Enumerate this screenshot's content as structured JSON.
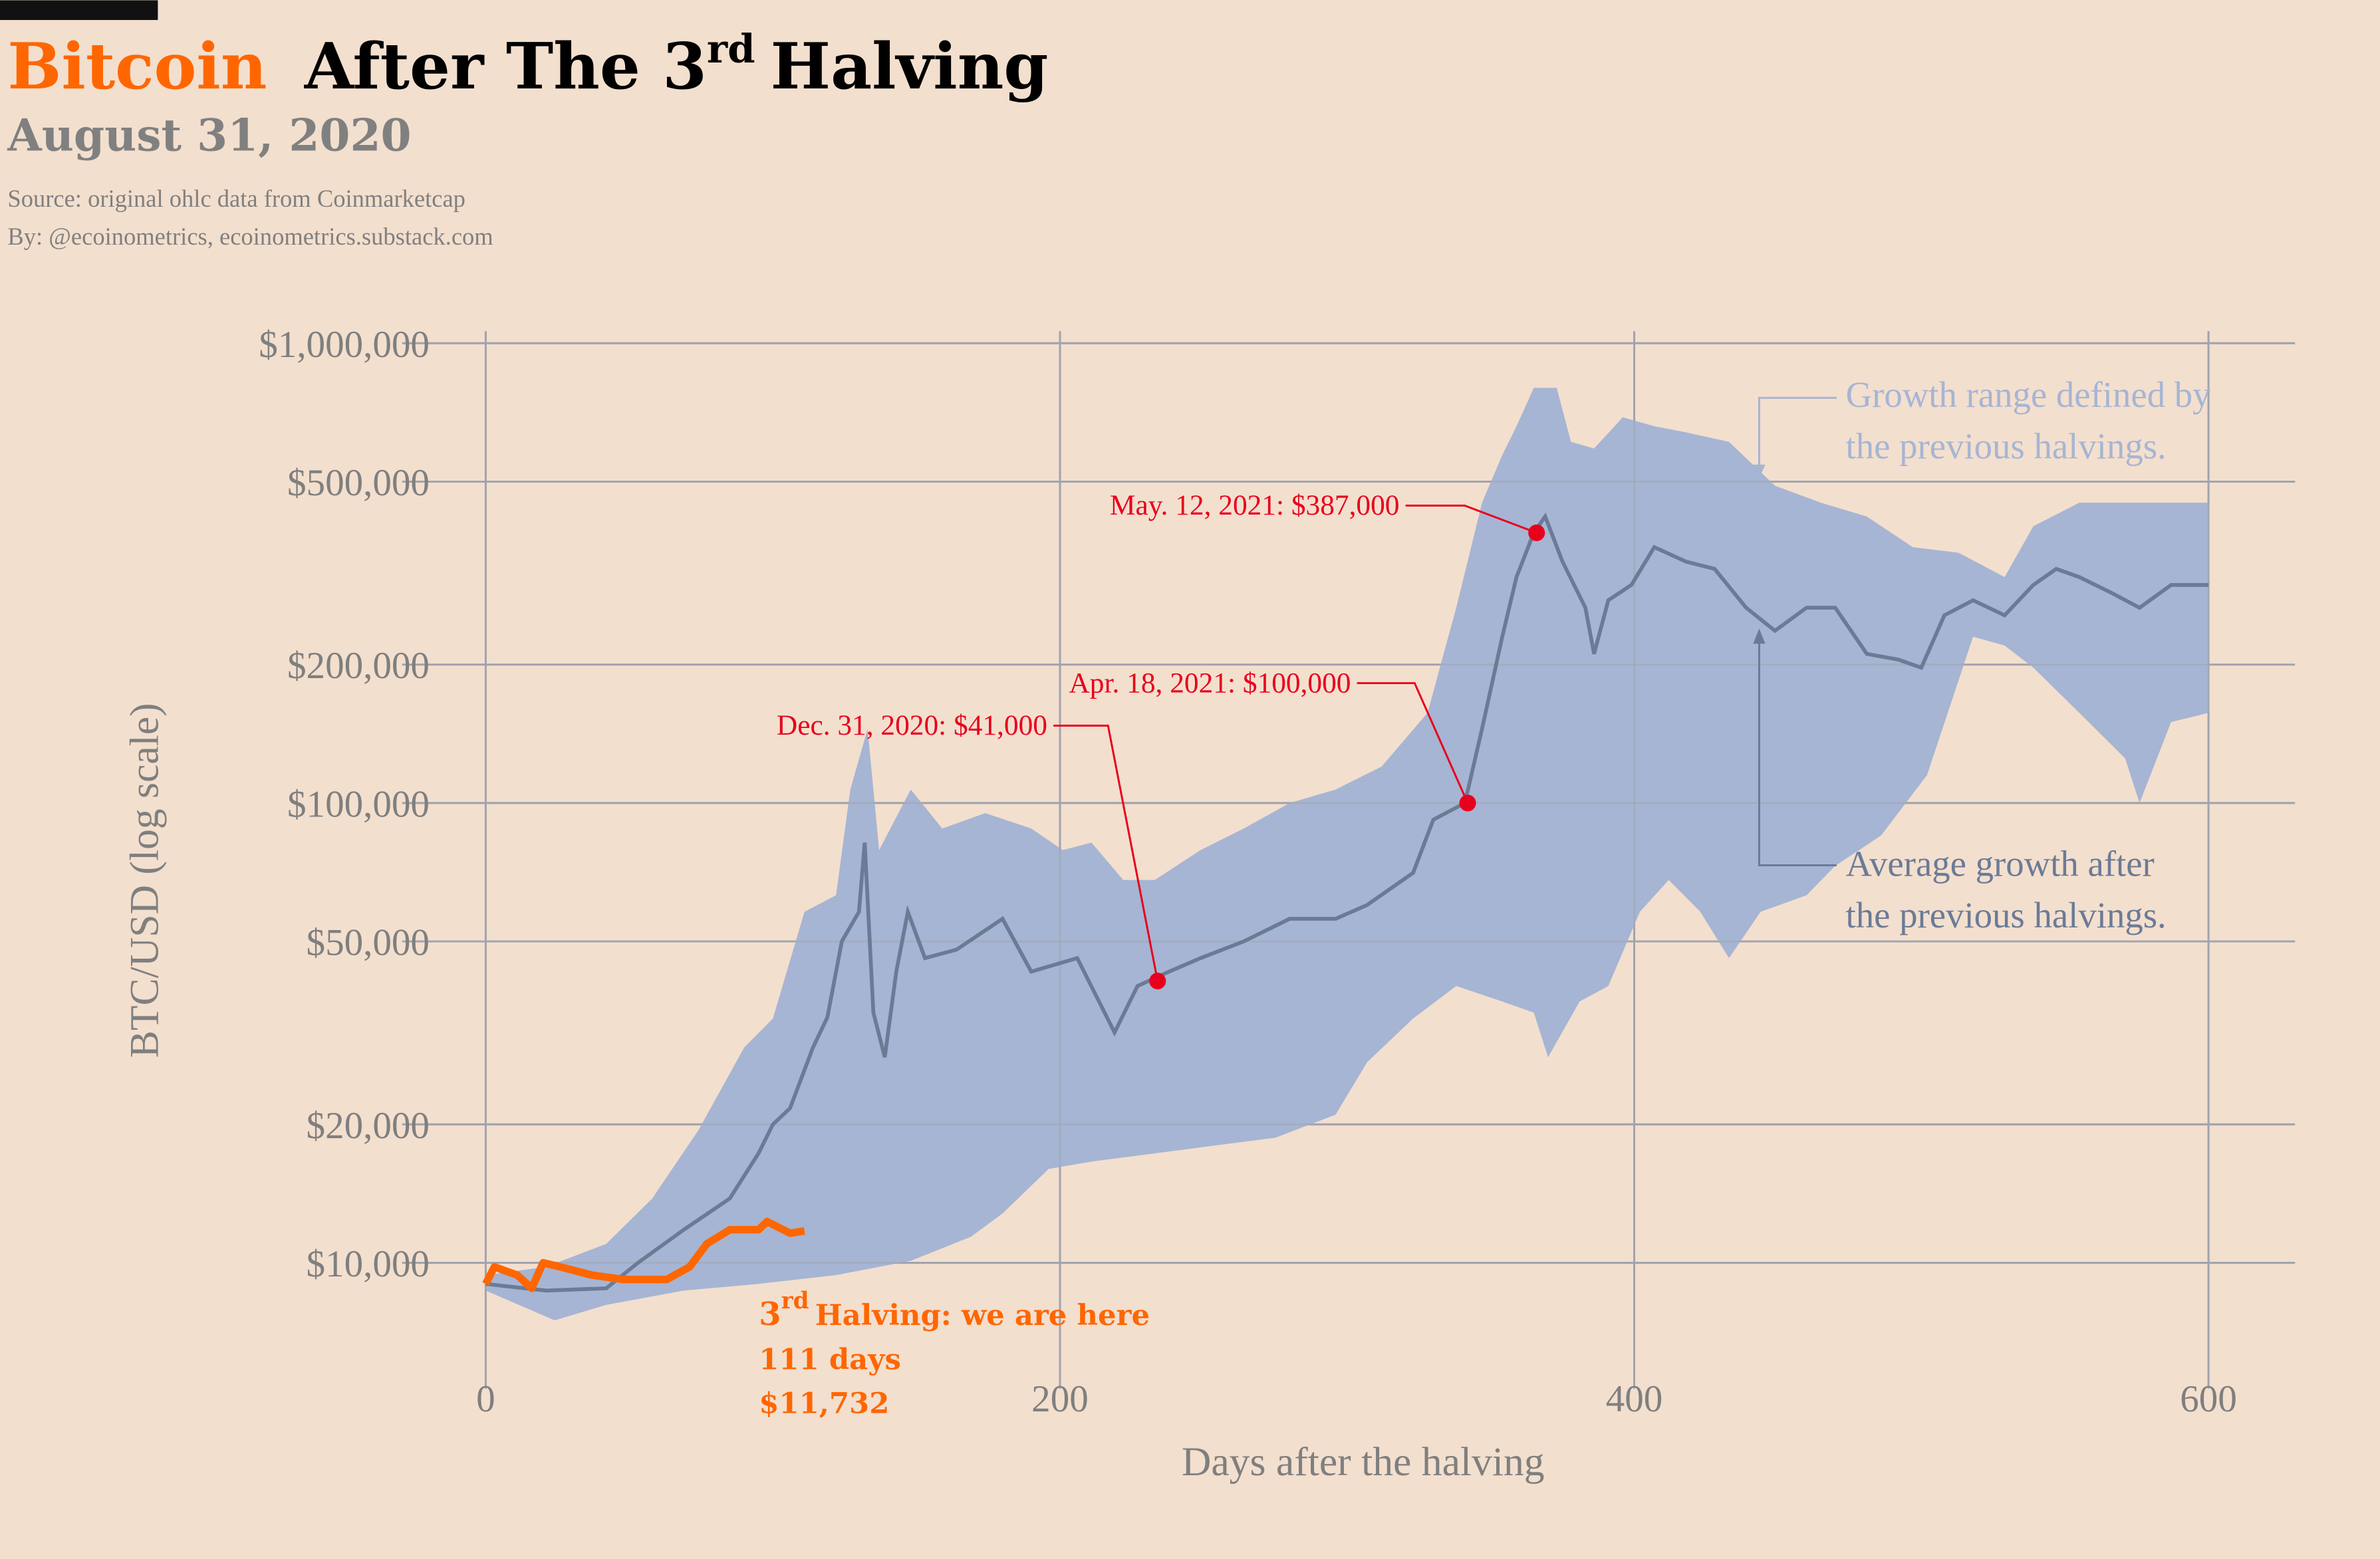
{
  "header": {
    "title_brand": "Bitcoin",
    "title_rest": "After The 3",
    "title_sup": "rd",
    "title_end": "Halving",
    "subtitle": "August 31, 2020",
    "source": "Source: original ohlc data from Coinmarketcap",
    "byline": "By: @ecoinometrics, ecoinometrics.substack.com"
  },
  "colors": {
    "background": "#f3dfce",
    "brand": "#ff6600",
    "band": "#a6b5d3",
    "average": "#6b7b96",
    "highlight": "#e8001c",
    "current": "#ff6600"
  },
  "chart_data": {
    "type": "area",
    "xlabel": "Days after the halving",
    "ylabel": "BTC/USD (log scale)",
    "y_scale": "log",
    "xlim": [
      -30,
      630
    ],
    "ylim": [
      7000,
      1000000
    ],
    "grid": true,
    "x_ticks": [
      {
        "value": 0,
        "label": "0"
      },
      {
        "value": 200,
        "label": "200"
      },
      {
        "value": 400,
        "label": "400"
      },
      {
        "value": 600,
        "label": "600"
      }
    ],
    "y_ticks": [
      {
        "value": 10000,
        "label": "$10,000"
      },
      {
        "value": 20000,
        "label": "$20,000"
      },
      {
        "value": 50000,
        "label": "$50,000"
      },
      {
        "value": 100000,
        "label": "$100,000"
      },
      {
        "value": 200000,
        "label": "$200,000"
      },
      {
        "value": 500000,
        "label": "$500,000"
      },
      {
        "value": 1000000,
        "label": "$1,000,000"
      }
    ],
    "range_upper": {
      "x": [
        0,
        21,
        42,
        58,
        74,
        90,
        100,
        111,
        122,
        127,
        133,
        137,
        148,
        159,
        174,
        190,
        201,
        211,
        222,
        233,
        249,
        264,
        280,
        296,
        312,
        328,
        338,
        347,
        354,
        359,
        365,
        373,
        378,
        386,
        396,
        407,
        418,
        433,
        449,
        465,
        481,
        497,
        513,
        529,
        539,
        555,
        571,
        587,
        600
      ],
      "y": [
        9400,
        9800,
        11000,
        13800,
        19400,
        29400,
        34000,
        58000,
        63000,
        107000,
        145000,
        79000,
        107000,
        88000,
        95000,
        88000,
        79000,
        82000,
        68000,
        68000,
        79000,
        88000,
        100000,
        107000,
        120000,
        157000,
        266000,
        450000,
        570000,
        660000,
        800000,
        800000,
        610000,
        590000,
        690000,
        660000,
        640000,
        610000,
        490000,
        450000,
        420000,
        360000,
        350000,
        310000,
        400000,
        450000,
        450000,
        450000,
        450000
      ]
    },
    "range_lower": {
      "x": [
        0,
        24,
        42,
        69,
        95,
        122,
        148,
        169,
        180,
        196,
        211,
        233,
        254,
        275,
        296,
        307,
        323,
        338,
        354,
        365,
        370,
        381,
        391,
        402,
        412,
        423,
        433,
        444,
        460,
        470,
        486,
        502,
        518,
        529,
        539,
        555,
        571,
        576,
        587,
        600
      ],
      "y": [
        8700,
        7500,
        8100,
        8700,
        9000,
        9400,
        10100,
        11400,
        12800,
        16000,
        16600,
        17300,
        18000,
        18700,
        21000,
        27300,
        34000,
        40000,
        37000,
        35000,
        28000,
        37000,
        40000,
        58000,
        68000,
        58000,
        46000,
        58000,
        63000,
        73000,
        85000,
        115000,
        230000,
        220000,
        197000,
        157000,
        125000,
        100000,
        150000,
        157000
      ]
    },
    "series": [
      {
        "name": "Average growth after the previous halvings.",
        "x": [
          0,
          21,
          42,
          53,
          69,
          85,
          95,
          100,
          106,
          114,
          119,
          124,
          130,
          132,
          135,
          139,
          143,
          147,
          153,
          164,
          180,
          190,
          206,
          219,
          227,
          238,
          249,
          264,
          280,
          296,
          307,
          323,
          330,
          341,
          347,
          354,
          359,
          365,
          369,
          375,
          383,
          386,
          391,
          399,
          407,
          418,
          428,
          439,
          449,
          460,
          470,
          481,
          492,
          500,
          508,
          518,
          529,
          539,
          547,
          555,
          566,
          576,
          587,
          600
        ],
        "y": [
          9000,
          8700,
          8800,
          10000,
          11800,
          13800,
          17300,
          20000,
          21700,
          29400,
          34200,
          50000,
          58000,
          82000,
          35000,
          28000,
          43000,
          58000,
          46000,
          48000,
          56000,
          43000,
          46000,
          31700,
          40000,
          43000,
          46000,
          50000,
          56000,
          56000,
          60000,
          70500,
          92000,
          100000,
          145000,
          229000,
          310000,
          387000,
          420000,
          335000,
          266000,
          211000,
          276000,
          298000,
          360000,
          335000,
          323000,
          266000,
          237000,
          266000,
          266000,
          211000,
          205000,
          197000,
          256000,
          276000,
          256000,
          298000,
          323000,
          310000,
          287000,
          266000,
          298000,
          298000
        ]
      },
      {
        "name": "3rd Halving",
        "x": [
          0,
          3,
          11,
          16,
          20,
          26,
          37,
          48,
          63,
          71,
          77,
          85,
          95,
          98,
          106,
          111
        ],
        "y": [
          9000,
          9800,
          9400,
          8800,
          10000,
          9800,
          9400,
          9200,
          9200,
          9800,
          11000,
          11800,
          11800,
          12300,
          11600,
          11732
        ]
      }
    ],
    "highlights": [
      {
        "day": 234,
        "value": 41000,
        "label": "Dec. 31, 2020: $41,000"
      },
      {
        "day": 342,
        "value": 100000,
        "label": "Apr. 18, 2021: $100,000"
      },
      {
        "day": 366,
        "value": 387000,
        "label": "May. 12, 2021: $387,000"
      }
    ],
    "annotations": {
      "range_line1": "Growth range defined by",
      "range_line2": "the previous halvings.",
      "avg_line1": "Average growth after",
      "avg_line2": "the previous halvings.",
      "current_sup": "rd",
      "current_line1_num": "3",
      "current_line1_rest": "Halving: we are here",
      "current_line2": "111 days",
      "current_line3": "$11,732"
    }
  }
}
